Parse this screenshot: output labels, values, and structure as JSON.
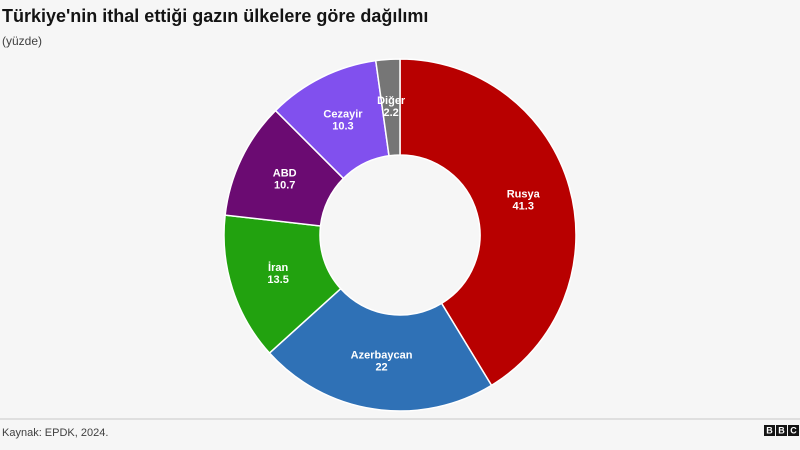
{
  "chart_data": {
    "type": "donut",
    "title": "Türkiye'nin ithal ettiği gazın ülkelere göre dağılımı",
    "subtitle": "(yüzde)",
    "source": "Kaynak: EPDK, 2024.",
    "logo": [
      "B",
      "B",
      "C"
    ],
    "categories": [
      "Rusya",
      "Azerbaycan",
      "İran",
      "ABD",
      "Cezayir",
      "Diğer"
    ],
    "values": [
      41.3,
      22,
      13.5,
      10.7,
      10.3,
      2.2
    ],
    "colors": [
      "#b80000",
      "#2f71b6",
      "#22a20f",
      "#6b0b72",
      "#8150ee",
      "#767676"
    ]
  }
}
